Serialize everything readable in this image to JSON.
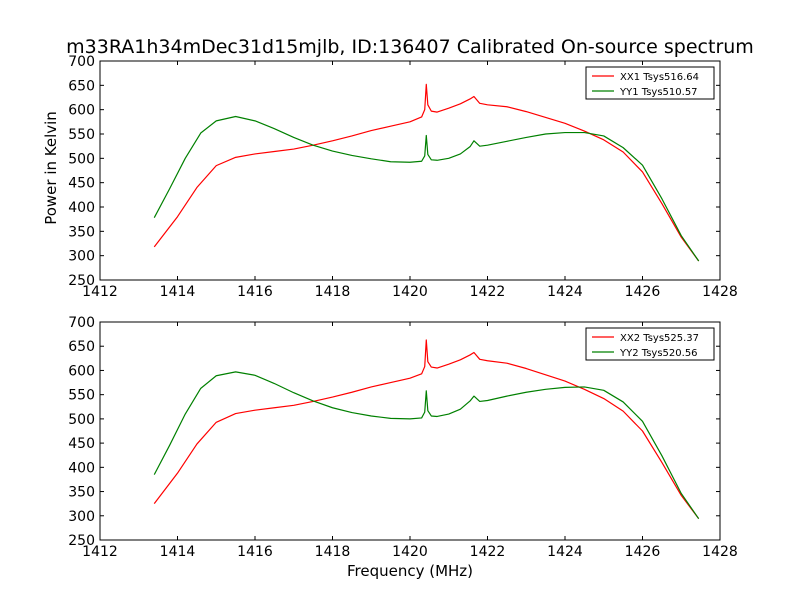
{
  "figure": {
    "title": "m33RA1h34mDec31d15mjlb, ID:136407 Calibrated On-source spectrum",
    "xlabel": "Frequency (MHz)",
    "ylabel": "Power in Kelvin"
  },
  "chart_data": [
    {
      "type": "line",
      "title": "m33RA1h34mDec31d15mjlb, ID:136407 Calibrated On-source spectrum",
      "xlabel": "",
      "ylabel": "Power in Kelvin",
      "xlim": [
        1412,
        1428
      ],
      "ylim": [
        250,
        700
      ],
      "xticks": [
        1412,
        1414,
        1416,
        1418,
        1420,
        1422,
        1424,
        1426,
        1428
      ],
      "yticks": [
        250,
        300,
        350,
        400,
        450,
        500,
        550,
        600,
        650,
        700
      ],
      "grid": false,
      "legend": "top-right",
      "series": [
        {
          "name": "XX1 Tsys516.64",
          "color": "#ff0000",
          "x": [
            1413.4,
            1414.0,
            1414.5,
            1415.0,
            1415.5,
            1416.0,
            1416.5,
            1417.0,
            1417.5,
            1418.0,
            1418.5,
            1419.0,
            1419.5,
            1420.0,
            1420.3,
            1420.38,
            1420.42,
            1420.46,
            1420.55,
            1420.7,
            1421.0,
            1421.3,
            1421.55,
            1421.65,
            1421.8,
            1422.0,
            1422.5,
            1423.0,
            1423.5,
            1424.0,
            1424.5,
            1425.0,
            1425.5,
            1426.0,
            1426.5,
            1427.0,
            1427.45
          ],
          "y": [
            318,
            380,
            440,
            485,
            502,
            509,
            514,
            519,
            527,
            536,
            546,
            557,
            566,
            575,
            585,
            600,
            652,
            610,
            597,
            595,
            603,
            612,
            622,
            627,
            613,
            610,
            606,
            596,
            584,
            572,
            556,
            538,
            513,
            472,
            407,
            338,
            289
          ]
        },
        {
          "name": "YY1 Tsys510.57",
          "color": "#008000",
          "x": [
            1413.4,
            1413.8,
            1414.2,
            1414.6,
            1415.0,
            1415.5,
            1416.0,
            1416.5,
            1417.0,
            1417.5,
            1418.0,
            1418.5,
            1419.0,
            1419.5,
            1420.0,
            1420.3,
            1420.38,
            1420.42,
            1420.46,
            1420.55,
            1420.7,
            1421.0,
            1421.3,
            1421.55,
            1421.65,
            1421.8,
            1422.0,
            1422.5,
            1423.0,
            1423.5,
            1424.0,
            1424.5,
            1425.0,
            1425.5,
            1426.0,
            1426.5,
            1427.0,
            1427.45
          ],
          "y": [
            378,
            438,
            500,
            552,
            577,
            586,
            577,
            561,
            543,
            527,
            515,
            506,
            499,
            493,
            492,
            494,
            505,
            547,
            508,
            497,
            496,
            500,
            509,
            524,
            536,
            525,
            527,
            535,
            543,
            550,
            553,
            553,
            546,
            522,
            486,
            417,
            341,
            289
          ]
        }
      ]
    },
    {
      "type": "line",
      "title": "",
      "xlabel": "Frequency (MHz)",
      "ylabel": "",
      "xlim": [
        1412,
        1428
      ],
      "ylim": [
        250,
        700
      ],
      "xticks": [
        1412,
        1414,
        1416,
        1418,
        1420,
        1422,
        1424,
        1426,
        1428
      ],
      "yticks": [
        250,
        300,
        350,
        400,
        450,
        500,
        550,
        600,
        650,
        700
      ],
      "grid": false,
      "legend": "top-right",
      "series": [
        {
          "name": "XX2 Tsys525.37",
          "color": "#ff0000",
          "x": [
            1413.4,
            1414.0,
            1414.5,
            1415.0,
            1415.5,
            1416.0,
            1416.5,
            1417.0,
            1417.5,
            1418.0,
            1418.5,
            1419.0,
            1419.5,
            1420.0,
            1420.3,
            1420.38,
            1420.42,
            1420.46,
            1420.55,
            1420.7,
            1421.0,
            1421.3,
            1421.55,
            1421.65,
            1421.8,
            1422.0,
            1422.5,
            1423.0,
            1423.5,
            1424.0,
            1424.5,
            1425.0,
            1425.5,
            1426.0,
            1426.5,
            1427.0,
            1427.45
          ],
          "y": [
            325,
            388,
            448,
            493,
            511,
            518,
            523,
            528,
            536,
            545,
            555,
            566,
            575,
            584,
            593,
            608,
            663,
            618,
            607,
            605,
            613,
            622,
            632,
            637,
            623,
            620,
            615,
            604,
            591,
            578,
            561,
            542,
            516,
            475,
            410,
            342,
            294
          ]
        },
        {
          "name": "YY2 Tsys520.56",
          "color": "#008000",
          "x": [
            1413.4,
            1413.8,
            1414.2,
            1414.6,
            1415.0,
            1415.5,
            1416.0,
            1416.5,
            1417.0,
            1417.5,
            1418.0,
            1418.5,
            1419.0,
            1419.5,
            1420.0,
            1420.3,
            1420.38,
            1420.42,
            1420.46,
            1420.55,
            1420.7,
            1421.0,
            1421.3,
            1421.55,
            1421.65,
            1421.8,
            1422.0,
            1422.5,
            1423.0,
            1423.5,
            1424.0,
            1424.5,
            1425.0,
            1425.5,
            1426.0,
            1426.5,
            1427.0,
            1427.45
          ],
          "y": [
            385,
            446,
            510,
            563,
            589,
            597,
            590,
            573,
            554,
            537,
            523,
            513,
            506,
            501,
            500,
            502,
            514,
            558,
            517,
            506,
            505,
            510,
            520,
            537,
            547,
            536,
            538,
            547,
            555,
            561,
            565,
            566,
            559,
            535,
            495,
            424,
            346,
            294
          ]
        }
      ]
    }
  ]
}
